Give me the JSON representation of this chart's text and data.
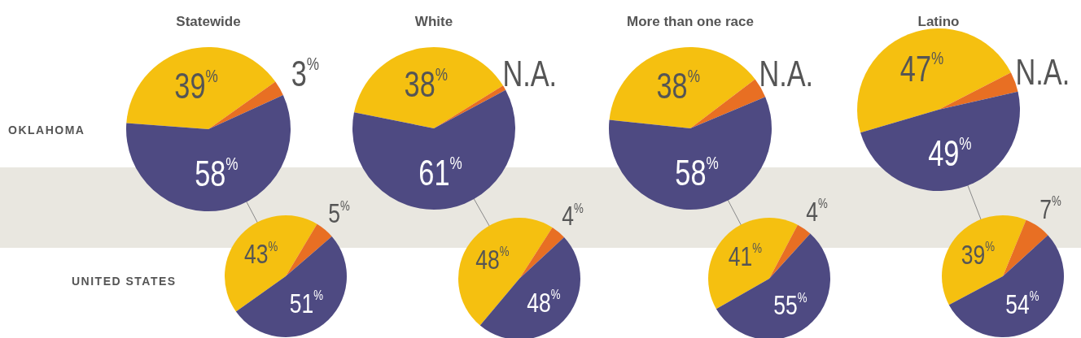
{
  "chart_data": [
    {
      "type": "pie",
      "title": "Statewide",
      "categories": [
        null,
        null,
        null
      ],
      "values": [
        39,
        3,
        58
      ],
      "colors": [
        "#f5c010",
        "#e86f23",
        "#4e4a82"
      ],
      "value_labels": [
        "39$^{%}$",
        "3$^{%}$",
        "58$^{%}$"
      ],
      "annotations": [
        "OKLAHOMA"
      ]
    },
    {
      "type": "pie",
      "title": "White",
      "categories": [
        null,
        null,
        null
      ],
      "values": [
        38,
        1,
        61
      ],
      "colors": [
        "#f5c010",
        "#e86f23",
        "#4e4a82"
      ],
      "value_labels": [
        "38$^{%}$",
        "N.A.",
        "61$^{%}$"
      ]
    },
    {
      "type": "pie",
      "title": "More than one race",
      "categories": [
        null,
        null,
        null
      ],
      "values": [
        38,
        4,
        58
      ],
      "colors": [
        "#f5c010",
        "#e86f23",
        "#4e4a82"
      ],
      "value_labels": [
        "38$^{%}$",
        "N.A.",
        "58$^{%}$"
      ]
    },
    {
      "type": "pie",
      "title": "Latino",
      "categories": [
        null,
        null,
        null
      ],
      "values": [
        47,
        4,
        49
      ],
      "colors": [
        "#f5c010",
        "#e86f23",
        "#4e4a82"
      ],
      "value_labels": [
        "47$^{%}$",
        "N.A.",
        "49$^{%}$"
      ]
    },
    {
      "type": "pie",
      "categories": [
        null,
        null,
        null
      ],
      "values": [
        43,
        5,
        51
      ],
      "colors": [
        "#f5c010",
        "#e86f23",
        "#4e4a82"
      ],
      "value_labels": [
        "43$^{%}$",
        "5$^{%}$",
        "51$^{%}$"
      ],
      "annotations": [
        "UNITED STATES"
      ]
    },
    {
      "type": "pie",
      "categories": [
        null,
        null,
        null
      ],
      "values": [
        48,
        4,
        48
      ],
      "colors": [
        "#f5c010",
        "#e86f23",
        "#4e4a82"
      ],
      "value_labels": [
        "48$^{%}$",
        "4$^{%}$",
        "48$^{%}$"
      ]
    },
    {
      "type": "pie",
      "categories": [
        null,
        null,
        null
      ],
      "values": [
        41,
        4,
        55
      ],
      "colors": [
        "#f5c010",
        "#e86f23",
        "#4e4a82"
      ],
      "value_labels": [
        "41$^{%}$",
        "4$^{%}$",
        "55$^{%}$"
      ]
    },
    {
      "type": "pie",
      "categories": [
        null,
        null,
        null
      ],
      "values": [
        39,
        7,
        54
      ],
      "colors": [
        "#f5c010",
        "#e86f23",
        "#4e4a82"
      ],
      "value_labels": [
        "39$^{%}$",
        "7$^{%}$",
        "54$^{%}$"
      ]
    }
  ]
}
